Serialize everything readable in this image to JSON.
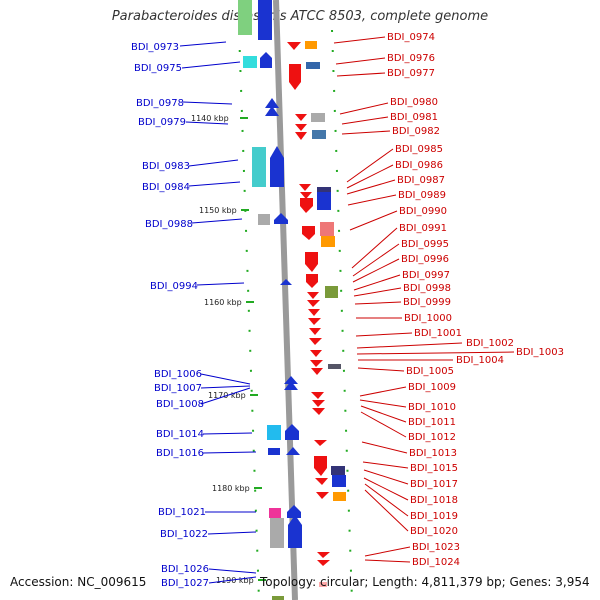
{
  "title": "Parabacteroides distasonis ATCC 8503, complete genome",
  "footer": {
    "accession": "Accession: NC_009615",
    "topology": "Topology: circular; Length: 4,811,379 bp; Genes: 3,954"
  },
  "colors": {
    "forward_strand_label": "#0000cc",
    "reverse_strand_label": "#cc0000",
    "backbone": "#9a9a9a",
    "kbp_tick": "#22aa22"
  },
  "kbp_marks": [
    {
      "label": "1140 kbp"
    },
    {
      "label": "1150 kbp"
    },
    {
      "label": "1160 kbp"
    },
    {
      "label": "1170 kbp"
    },
    {
      "label": "1180 kbp"
    },
    {
      "label": "1190 kbp"
    }
  ],
  "left_genes": [
    {
      "label": "BDI_0973"
    },
    {
      "label": "BDI_0975"
    },
    {
      "label": "BDI_0978"
    },
    {
      "label": "BDI_0979"
    },
    {
      "label": "BDI_0983"
    },
    {
      "label": "BDI_0984"
    },
    {
      "label": "BDI_0988"
    },
    {
      "label": "BDI_0994"
    },
    {
      "label": "BDI_1006"
    },
    {
      "label": "BDI_1007"
    },
    {
      "label": "BDI_1008"
    },
    {
      "label": "BDI_1014"
    },
    {
      "label": "BDI_1016"
    },
    {
      "label": "BDI_1021"
    },
    {
      "label": "BDI_1022"
    },
    {
      "label": "BDI_1026"
    },
    {
      "label": "BDI_1027"
    }
  ],
  "right_genes": [
    {
      "label": "BDI_0974"
    },
    {
      "label": "BDI_0976"
    },
    {
      "label": "BDI_0977"
    },
    {
      "label": "BDI_0980"
    },
    {
      "label": "BDI_0981"
    },
    {
      "label": "BDI_0982"
    },
    {
      "label": "BDI_0985"
    },
    {
      "label": "BDI_0986"
    },
    {
      "label": "BDI_0987"
    },
    {
      "label": "BDI_0989"
    },
    {
      "label": "BDI_0990"
    },
    {
      "label": "BDI_0991"
    },
    {
      "label": "BDI_0995"
    },
    {
      "label": "BDI_0996"
    },
    {
      "label": "BDI_0997"
    },
    {
      "label": "BDI_0998"
    },
    {
      "label": "BDI_0999"
    },
    {
      "label": "BDI_1000"
    },
    {
      "label": "BDI_1001"
    },
    {
      "label": "BDI_1002"
    },
    {
      "label": "BDI_1003"
    },
    {
      "label": "BDI_1004"
    },
    {
      "label": "BDI_1005"
    },
    {
      "label": "BDI_1009"
    },
    {
      "label": "BDI_1010"
    },
    {
      "label": "BDI_1011"
    },
    {
      "label": "BDI_1012"
    },
    {
      "label": "BDI_1013"
    },
    {
      "label": "BDI_1015"
    },
    {
      "label": "BDI_1017"
    },
    {
      "label": "BDI_1018"
    },
    {
      "label": "BDI_1019"
    },
    {
      "label": "BDI_1020"
    },
    {
      "label": "BDI_1023"
    },
    {
      "label": "BDI_1024"
    }
  ]
}
